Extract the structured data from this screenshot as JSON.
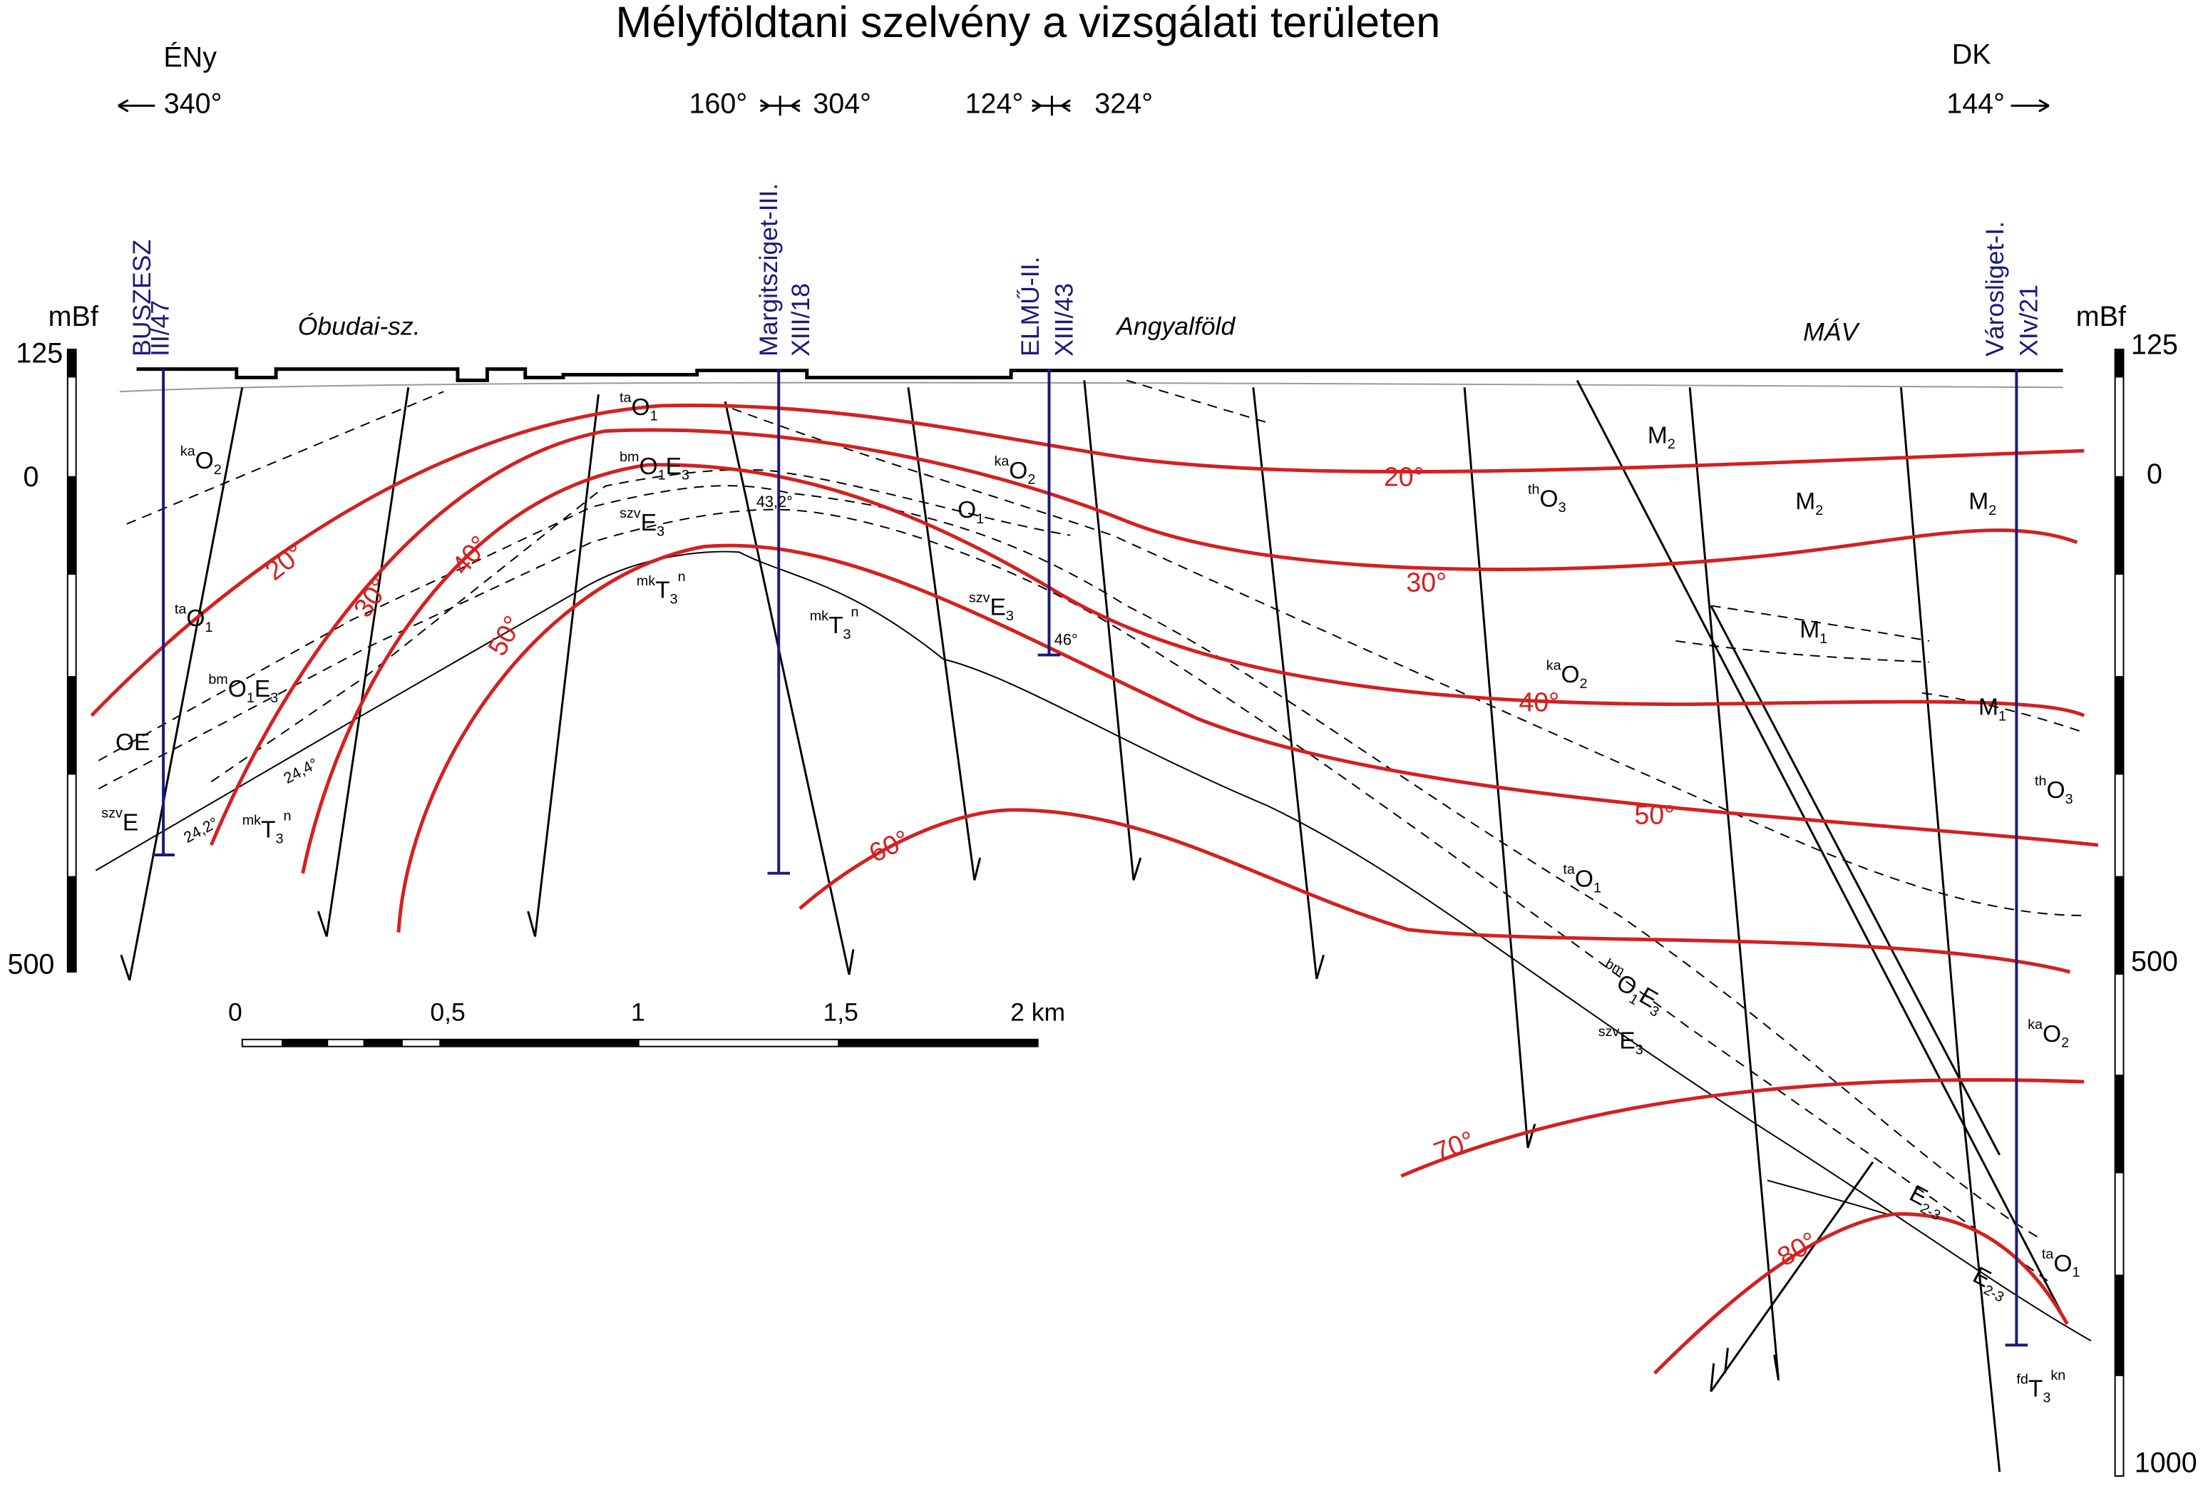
{
  "title": "Mélyföldtani szelvény a vizsgálati területen",
  "directions": {
    "left": "ÉNy",
    "right": "DK"
  },
  "azimuths": [
    "340°",
    "160°",
    "304°",
    "124°",
    "324°",
    "144°"
  ],
  "wells": [
    {
      "name": "BUSZESZ",
      "id": "III/47"
    },
    {
      "name": "Margitsziget-III.",
      "id": "XIII/18"
    },
    {
      "name": "ELMŰ-II.",
      "id": "XIII/43"
    },
    {
      "name": "Városliget-I.",
      "id": "XIv/21"
    }
  ],
  "places": [
    "Óbudai-sz.",
    "Angyalföld",
    "MÁV"
  ],
  "elevation": {
    "unit": "mBf",
    "left_labels": [
      "125",
      "0",
      "500"
    ],
    "right_labels": [
      "125",
      "0",
      "500",
      "1000"
    ]
  },
  "isotherms": [
    "20°",
    "30°",
    "40°",
    "50°",
    "60°",
    "70°",
    "80°",
    "20°",
    "30°",
    "40°",
    "50°"
  ],
  "dips": [
    "43,2°",
    "46°",
    "24,2°",
    "24,4°"
  ],
  "formations": [
    {
      "pre": "ka",
      "main": "O",
      "sub": "2"
    },
    {
      "pre": "ta",
      "main": "O",
      "sub": "1"
    },
    {
      "pre": "bm",
      "main": "O",
      "sub": "1",
      "main2": "E",
      "sub2": "3"
    },
    {
      "main": "OE"
    },
    {
      "pre": "szv",
      "main": "E"
    },
    {
      "pre": "mk",
      "main": "T",
      "sub": "3",
      "post": "n"
    },
    {
      "pre": "ta",
      "main": "O",
      "sub": "1"
    },
    {
      "pre": "bm",
      "main": "O",
      "sub": "1",
      "main2": "E",
      "sub2": "3"
    },
    {
      "pre": "szv",
      "main": "E",
      "sub": "3"
    },
    {
      "pre": "mk",
      "main": "T",
      "sub": "3",
      "post": "n"
    },
    {
      "pre": "mk",
      "main": "T",
      "sub": "3",
      "post": "n"
    },
    {
      "pre": "ka",
      "main": "O",
      "sub": "2"
    },
    {
      "main": "O",
      "sub": "1"
    },
    {
      "pre": "szv",
      "main": "E",
      "sub": "3"
    },
    {
      "main": "M",
      "sub": "2"
    },
    {
      "pre": "th",
      "main": "O",
      "sub": "3"
    },
    {
      "main": "M",
      "sub": "2"
    },
    {
      "main": "M",
      "sub": "2"
    },
    {
      "main": "M",
      "sub": "1"
    },
    {
      "pre": "ka",
      "main": "O",
      "sub": "2"
    },
    {
      "main": "M",
      "sub": "1"
    },
    {
      "pre": "th",
      "main": "O",
      "sub": "3"
    },
    {
      "pre": "ta",
      "main": "O",
      "sub": "1"
    },
    {
      "pre": "bm",
      "main": "O",
      "sub": "1",
      "main2": "E",
      "sub2": "3"
    },
    {
      "pre": "szv",
      "main": "E",
      "sub": "3"
    },
    {
      "pre": "ka",
      "main": "O",
      "sub": "2"
    },
    {
      "main": "E",
      "sub": "2-3"
    },
    {
      "main": "E",
      "sub": "2-3"
    },
    {
      "pre": "ta",
      "main": "O",
      "sub": "1"
    },
    {
      "pre": "fd",
      "main": "T",
      "sub": "3",
      "post": "kn"
    }
  ],
  "scale_labels": [
    "0",
    "0,5",
    "1",
    "1,5",
    "2 km"
  ]
}
